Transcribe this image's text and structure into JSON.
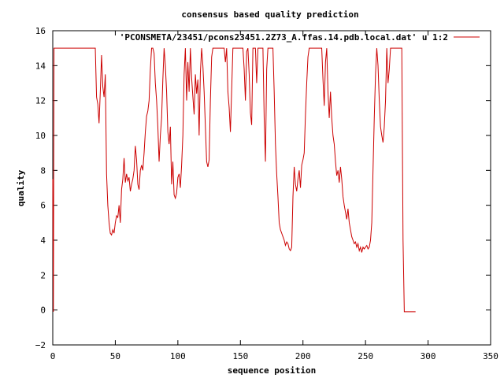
{
  "chart_data": {
    "type": "line",
    "title": "consensus based quality prediction",
    "xlabel": "sequence position",
    "ylabel": "quality",
    "xlim": [
      0,
      350
    ],
    "ylim": [
      -2,
      16
    ],
    "x_ticks": [
      0,
      50,
      100,
      150,
      200,
      250,
      300,
      350
    ],
    "y_ticks": [
      -2,
      0,
      2,
      4,
      6,
      8,
      10,
      12,
      14,
      16
    ],
    "x_tick_labels": [
      "0",
      "50",
      "100",
      "150",
      "200",
      "250",
      "300",
      "350"
    ],
    "y_tick_labels": [
      "−2",
      "0",
      "2",
      "4",
      "6",
      "8",
      "10",
      "12",
      "14",
      "16"
    ],
    "grid": false,
    "legend_position": "top-right",
    "series": [
      {
        "name": "'PCONSMETA/23451/pcons23451.2Z73_A.ffas.14.pdb.local.dat' u 1:2",
        "color": "#cc0000",
        "points": [
          [
            0,
            7.5
          ],
          [
            0.5,
            -0.1
          ],
          [
            1,
            15
          ],
          [
            34,
            15
          ],
          [
            35,
            12.2
          ],
          [
            36,
            11.8
          ],
          [
            37,
            10.7
          ],
          [
            38,
            12.5
          ],
          [
            39,
            14.6
          ],
          [
            40,
            12.8
          ],
          [
            41,
            12.2
          ],
          [
            42,
            13.5
          ],
          [
            43,
            7.8
          ],
          [
            44,
            6.0
          ],
          [
            45,
            5.0
          ],
          [
            46,
            4.4
          ],
          [
            47,
            4.3
          ],
          [
            48,
            4.6
          ],
          [
            49,
            4.4
          ],
          [
            50,
            5.0
          ],
          [
            51,
            5.4
          ],
          [
            52,
            5.3
          ],
          [
            53,
            6.0
          ],
          [
            54,
            5.0
          ],
          [
            55,
            6.9
          ],
          [
            56,
            7.5
          ],
          [
            57,
            8.7
          ],
          [
            58,
            7.3
          ],
          [
            59,
            7.8
          ],
          [
            60,
            7.4
          ],
          [
            61,
            7.6
          ],
          [
            62,
            6.8
          ],
          [
            63,
            7.2
          ],
          [
            64,
            7.5
          ],
          [
            65,
            8.0
          ],
          [
            66,
            9.4
          ],
          [
            67,
            8.6
          ],
          [
            68,
            7.2
          ],
          [
            69,
            6.9
          ],
          [
            70,
            8.0
          ],
          [
            71,
            8.3
          ],
          [
            72,
            8.0
          ],
          [
            73,
            9.0
          ],
          [
            74,
            10.2
          ],
          [
            75,
            11.1
          ],
          [
            76,
            11.4
          ],
          [
            77,
            12.0
          ],
          [
            78,
            13.8
          ],
          [
            79,
            15.0
          ],
          [
            80,
            15.0
          ],
          [
            81,
            14.7
          ],
          [
            82,
            13.0
          ],
          [
            83,
            12.0
          ],
          [
            84,
            10.5
          ],
          [
            85,
            8.5
          ],
          [
            86,
            10.0
          ],
          [
            87,
            11.0
          ],
          [
            88,
            13.2
          ],
          [
            89,
            15.0
          ],
          [
            90,
            14.0
          ],
          [
            91,
            12.5
          ],
          [
            92,
            10.2
          ],
          [
            93,
            9.5
          ],
          [
            94,
            10.5
          ],
          [
            95,
            7.2
          ],
          [
            96,
            8.5
          ],
          [
            97,
            6.6
          ],
          [
            98,
            6.4
          ],
          [
            99,
            6.7
          ],
          [
            100,
            7.6
          ],
          [
            101,
            7.8
          ],
          [
            102,
            7.0
          ],
          [
            103,
            8.3
          ],
          [
            104,
            10.0
          ],
          [
            105,
            13.5
          ],
          [
            106,
            15.0
          ],
          [
            107,
            12.0
          ],
          [
            108,
            14.2
          ],
          [
            109,
            12.5
          ],
          [
            110,
            15.0
          ],
          [
            111,
            13.3
          ],
          [
            112,
            12.2
          ],
          [
            113,
            11.2
          ],
          [
            114,
            13.5
          ],
          [
            115,
            12.4
          ],
          [
            116,
            13.2
          ],
          [
            117,
            10.0
          ],
          [
            118,
            13.6
          ],
          [
            119,
            15.0
          ],
          [
            120,
            14.0
          ],
          [
            121,
            12.5
          ],
          [
            122,
            10.5
          ],
          [
            123,
            8.5
          ],
          [
            124,
            8.2
          ],
          [
            125,
            8.6
          ],
          [
            126,
            12.0
          ],
          [
            127,
            14.5
          ],
          [
            128,
            15.0
          ],
          [
            137,
            15.0
          ],
          [
            138,
            14.2
          ],
          [
            139,
            15.0
          ],
          [
            140,
            12.5
          ],
          [
            141,
            11.6
          ],
          [
            142,
            10.2
          ],
          [
            143,
            12.6
          ],
          [
            144,
            15.0
          ],
          [
            152,
            15.0
          ],
          [
            153,
            13.8
          ],
          [
            154,
            12.0
          ],
          [
            155,
            14.8
          ],
          [
            156,
            15.0
          ],
          [
            157,
            13.5
          ],
          [
            158,
            11.3
          ],
          [
            159,
            10.6
          ],
          [
            160,
            15.0
          ],
          [
            162,
            15.0
          ],
          [
            163,
            13.0
          ],
          [
            164,
            15.0
          ],
          [
            168,
            15.0
          ],
          [
            169,
            11.0
          ],
          [
            170,
            8.5
          ],
          [
            171,
            13.8
          ],
          [
            172,
            15.0
          ],
          [
            176,
            15.0
          ],
          [
            177,
            12.5
          ],
          [
            178,
            9.5
          ],
          [
            179,
            7.8
          ],
          [
            180,
            6.5
          ],
          [
            181,
            5.0
          ],
          [
            182,
            4.6
          ],
          [
            183,
            4.4
          ],
          [
            184,
            4.2
          ],
          [
            185,
            4.0
          ],
          [
            186,
            3.7
          ],
          [
            187,
            3.9
          ],
          [
            188,
            3.8
          ],
          [
            189,
            3.5
          ],
          [
            190,
            3.4
          ],
          [
            191,
            3.6
          ],
          [
            192,
            6.5
          ],
          [
            193,
            8.2
          ],
          [
            194,
            7.2
          ],
          [
            195,
            6.8
          ],
          [
            196,
            7.5
          ],
          [
            197,
            8.0
          ],
          [
            198,
            7.0
          ],
          [
            199,
            8.3
          ],
          [
            200,
            8.6
          ],
          [
            201,
            9.0
          ],
          [
            202,
            11.2
          ],
          [
            203,
            13.0
          ],
          [
            204,
            14.5
          ],
          [
            205,
            15.0
          ],
          [
            215,
            15.0
          ],
          [
            216,
            13.2
          ],
          [
            217,
            11.7
          ],
          [
            218,
            14.2
          ],
          [
            219,
            15.0
          ],
          [
            220,
            12.5
          ],
          [
            221,
            11.0
          ],
          [
            222,
            12.5
          ],
          [
            223,
            11.0
          ],
          [
            224,
            10.0
          ],
          [
            225,
            9.5
          ],
          [
            226,
            8.5
          ],
          [
            227,
            7.7
          ],
          [
            228,
            8.0
          ],
          [
            229,
            7.3
          ],
          [
            230,
            8.2
          ],
          [
            231,
            7.5
          ],
          [
            232,
            6.5
          ],
          [
            233,
            6.0
          ],
          [
            234,
            5.6
          ],
          [
            235,
            5.2
          ],
          [
            236,
            5.8
          ],
          [
            237,
            5.0
          ],
          [
            238,
            4.6
          ],
          [
            239,
            4.2
          ],
          [
            240,
            4.0
          ],
          [
            241,
            3.8
          ],
          [
            242,
            3.9
          ],
          [
            243,
            3.6
          ],
          [
            244,
            3.8
          ],
          [
            245,
            3.4
          ],
          [
            246,
            3.6
          ],
          [
            247,
            3.3
          ],
          [
            248,
            3.6
          ],
          [
            249,
            3.5
          ],
          [
            250,
            3.6
          ],
          [
            251,
            3.7
          ],
          [
            252,
            3.5
          ],
          [
            253,
            3.6
          ],
          [
            254,
            4.0
          ],
          [
            255,
            5.0
          ],
          [
            256,
            8.0
          ],
          [
            257,
            11.0
          ],
          [
            258,
            13.5
          ],
          [
            259,
            15.0
          ],
          [
            260,
            14.0
          ],
          [
            261,
            12.0
          ],
          [
            262,
            10.5
          ],
          [
            263,
            10.0
          ],
          [
            264,
            9.6
          ],
          [
            265,
            10.5
          ],
          [
            266,
            12.0
          ],
          [
            267,
            15.0
          ],
          [
            268,
            13.0
          ],
          [
            269,
            13.8
          ],
          [
            270,
            15.0
          ],
          [
            279,
            15.0
          ],
          [
            280,
            4.0
          ],
          [
            281,
            -0.1
          ],
          [
            290,
            -0.1
          ]
        ]
      }
    ]
  }
}
